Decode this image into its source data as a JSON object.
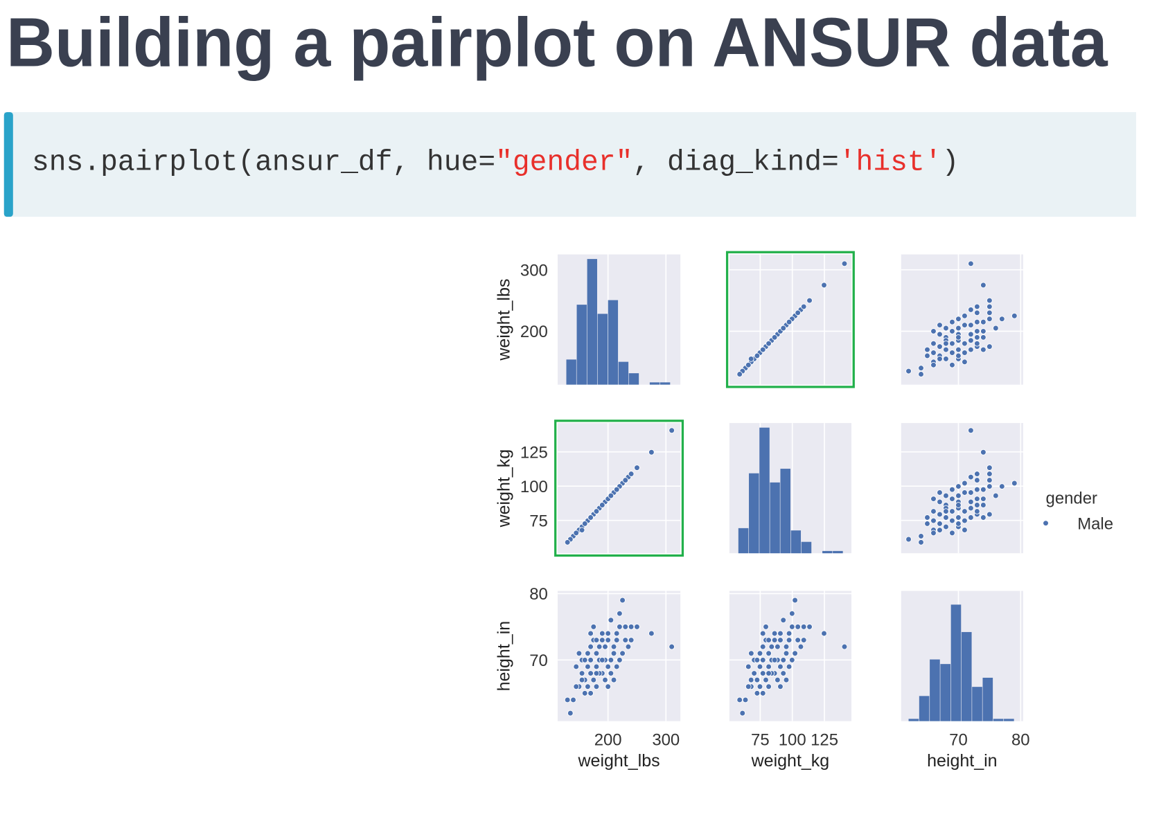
{
  "title": "Building a pairplot on ANSUR data",
  "code": [
    "sns.pairplot(ansur_df, hue=",
    "\"gender\"",
    ", diag_kind=",
    "'hist'",
    ")"
  ],
  "chart_data": {
    "type": "pairplot",
    "variables": [
      {
        "name": "weight_lbs",
        "lim": [
          113,
          325
        ],
        "ticks": [
          200,
          300
        ],
        "bins": [
          128,
          146,
          164,
          182,
          200,
          218,
          236,
          254,
          272,
          290,
          308
        ],
        "counts": [
          11,
          35,
          55,
          31,
          37,
          10,
          5,
          0,
          1,
          1
        ]
      },
      {
        "name": "weight_kg",
        "lim": [
          51,
          146
        ],
        "ticks": [
          75,
          100,
          125
        ],
        "bins": [
          58,
          66.2,
          74.4,
          82.6,
          90.7,
          98.9,
          107,
          115.2,
          123.4,
          131.5,
          139.7
        ],
        "counts": [
          11,
          35,
          55,
          31,
          37,
          10,
          5,
          0,
          1,
          1
        ]
      },
      {
        "name": "height_in",
        "lim": [
          60.8,
          80.4
        ],
        "ticks": [
          70,
          80
        ],
        "bins": [
          62,
          63.7,
          65.4,
          67.1,
          68.8,
          70.5,
          72.2,
          73.9,
          75.6,
          77.3,
          79
        ],
        "counts": [
          1,
          11,
          27,
          25,
          51,
          39,
          15,
          19,
          1,
          1
        ]
      }
    ],
    "points": [
      [
        310,
        140.6,
        72
      ],
      [
        275,
        124.7,
        74
      ],
      [
        250,
        113.4,
        75
      ],
      [
        240,
        108.9,
        73
      ],
      [
        235,
        106.6,
        72
      ],
      [
        230,
        104.3,
        75
      ],
      [
        225,
        102.1,
        79
      ],
      [
        220,
        99.8,
        77
      ],
      [
        215,
        97.5,
        73
      ],
      [
        210,
        95.3,
        71
      ],
      [
        205,
        93.0,
        76
      ],
      [
        200,
        90.7,
        74
      ],
      [
        195,
        88.5,
        70
      ],
      [
        190,
        86.2,
        73
      ],
      [
        185,
        83.9,
        72
      ],
      [
        180,
        81.6,
        69
      ],
      [
        175,
        79.4,
        75
      ],
      [
        170,
        77.1,
        68
      ],
      [
        165,
        74.8,
        71
      ],
      [
        160,
        72.6,
        67
      ],
      [
        155,
        70.3,
        70
      ],
      [
        150,
        68.0,
        66
      ],
      [
        145,
        65.8,
        69
      ],
      [
        140,
        63.5,
        64
      ],
      [
        135,
        61.2,
        62
      ],
      [
        130,
        59.0,
        64
      ],
      [
        210,
        95.3,
        67
      ],
      [
        200,
        90.7,
        69
      ],
      [
        190,
        86.2,
        68
      ],
      [
        180,
        81.6,
        66
      ],
      [
        175,
        79.4,
        73
      ],
      [
        185,
        83.9,
        70
      ],
      [
        195,
        88.5,
        72
      ],
      [
        205,
        93.0,
        70
      ],
      [
        215,
        97.5,
        69
      ],
      [
        220,
        99.8,
        75
      ],
      [
        170,
        77.1,
        72
      ],
      [
        165,
        74.8,
        66
      ],
      [
        160,
        72.6,
        70
      ],
      [
        155,
        70.3,
        68
      ],
      [
        150,
        68.0,
        71
      ],
      [
        225,
        102.1,
        71
      ],
      [
        230,
        104.3,
        73
      ],
      [
        200,
        90.7,
        66
      ],
      [
        190,
        86.2,
        74
      ],
      [
        180,
        81.6,
        71
      ],
      [
        170,
        77.1,
        70
      ],
      [
        165,
        74.8,
        69
      ],
      [
        175,
        79.4,
        67
      ],
      [
        185,
        83.9,
        68
      ],
      [
        195,
        88.5,
        67
      ],
      [
        210,
        95.3,
        72
      ],
      [
        220,
        99.8,
        70
      ],
      [
        240,
        108.9,
        75
      ],
      [
        160,
        72.6,
        65
      ],
      [
        170,
        77.1,
        65
      ],
      [
        180,
        81.6,
        73
      ],
      [
        200,
        90.7,
        73
      ],
      [
        155,
        67.9,
        67
      ],
      [
        215,
        97.5,
        74
      ],
      [
        145,
        65.8,
        66
      ],
      [
        190,
        86.2,
        70
      ],
      [
        180,
        81.6,
        68
      ],
      [
        170,
        77.1,
        74
      ],
      [
        205,
        93.0,
        68
      ]
    ],
    "diag_ylim": [
      0,
      57
    ],
    "color": "#4c72b0",
    "background": "#eaeaf2",
    "grid": true,
    "legend": {
      "title": "gender",
      "entries": [
        "Male"
      ]
    }
  }
}
